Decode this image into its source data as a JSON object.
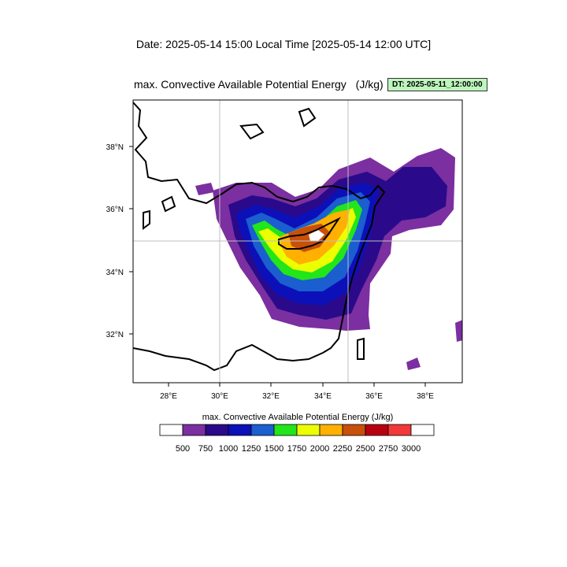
{
  "header": {
    "date_line": "Date: 2025-05-14  15:00 Local Time [2025-05-14  12:00 UTC]"
  },
  "panel": {
    "title": "max. Convective Available Potential Energy",
    "units": "(J/kg)",
    "dt_badge": "DT: 2025-05-11_12:00:00",
    "badge_color": "#bdf5bd"
  },
  "map": {
    "lon_range": [
      26.6,
      39.4
    ],
    "lat_range": [
      30.5,
      39.4
    ],
    "x_ticks": [
      "28°E",
      "30°E",
      "32°E",
      "34°E",
      "36°E",
      "38°E"
    ],
    "y_ticks": [
      "32°N",
      "34°N",
      "36°N",
      "38°N"
    ],
    "gridlines": [
      "30°E",
      "35°E",
      "35°N"
    ],
    "coastline_color": "#000000"
  },
  "colorbar": {
    "title": "max. Convective Available Potential Energy  (J/kg)",
    "levels": [
      "500",
      "750",
      "1000",
      "1250",
      "1500",
      "1750",
      "2000",
      "2250",
      "2500",
      "2750",
      "3000"
    ],
    "colors": [
      "#ffffff",
      "#7b2fa0",
      "#2a0a8a",
      "#0c10b8",
      "#1a5ed0",
      "#22e51a",
      "#ecff00",
      "#ffb000",
      "#c8500a",
      "#b80010",
      "#f23838",
      "#ffffff"
    ]
  }
}
